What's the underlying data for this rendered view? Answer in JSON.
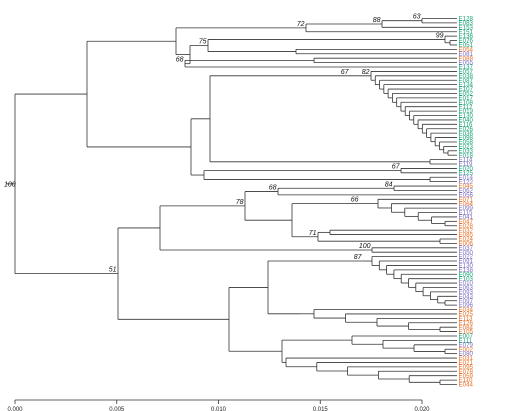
{
  "figure": {
    "colors": {
      "green": "#1aa37a",
      "orange": "#e8702a",
      "purple": "#7a6fc0",
      "branch": "#333333"
    },
    "tips": [
      {
        "label": "E128",
        "color": "green"
      },
      {
        "label": "E083",
        "color": "green"
      },
      {
        "label": "E153",
        "color": "green"
      },
      {
        "label": "E151",
        "color": "green"
      },
      {
        "label": "E136",
        "color": "green"
      },
      {
        "label": "E076",
        "color": "green"
      },
      {
        "label": "E051",
        "color": "green"
      },
      {
        "label": "E054",
        "color": "orange"
      },
      {
        "label": "E081",
        "color": "purple"
      },
      {
        "label": "E088",
        "color": "orange"
      },
      {
        "label": "E055",
        "color": "purple"
      },
      {
        "label": "E137",
        "color": "green"
      },
      {
        "label": "E057",
        "color": "green"
      },
      {
        "label": "E038",
        "color": "green"
      },
      {
        "label": "E087",
        "color": "green"
      },
      {
        "label": "E134",
        "color": "green"
      },
      {
        "label": "E107",
        "color": "green"
      },
      {
        "label": "E052",
        "color": "green"
      },
      {
        "label": "E017",
        "color": "green"
      },
      {
        "label": "E108",
        "color": "green"
      },
      {
        "label": "E112",
        "color": "green"
      },
      {
        "label": "E019",
        "color": "green"
      },
      {
        "label": "E130",
        "color": "green"
      },
      {
        "label": "E040",
        "color": "green"
      },
      {
        "label": "E116",
        "color": "green"
      },
      {
        "label": "E026",
        "color": "green"
      },
      {
        "label": "E036",
        "color": "green"
      },
      {
        "label": "E098",
        "color": "green"
      },
      {
        "label": "E058",
        "color": "green"
      },
      {
        "label": "E023",
        "color": "green"
      },
      {
        "label": "E033",
        "color": "green"
      },
      {
        "label": "E018",
        "color": "green"
      },
      {
        "label": "E114",
        "color": "purple"
      },
      {
        "label": "E119",
        "color": "purple"
      },
      {
        "label": "E020",
        "color": "green"
      },
      {
        "label": "E125",
        "color": "green"
      },
      {
        "label": "E014",
        "color": "purple"
      },
      {
        "label": "E122",
        "color": "purple"
      },
      {
        "label": "E045",
        "color": "orange"
      },
      {
        "label": "E062",
        "color": "purple"
      },
      {
        "label": "E056",
        "color": "purple"
      },
      {
        "label": "E071",
        "color": "orange"
      },
      {
        "label": "E064",
        "color": "orange"
      },
      {
        "label": "E099",
        "color": "purple"
      },
      {
        "label": "E115",
        "color": "purple"
      },
      {
        "label": "E041",
        "color": "purple"
      },
      {
        "label": "E047",
        "color": "orange"
      },
      {
        "label": "E028",
        "color": "orange"
      },
      {
        "label": "E032",
        "color": "orange"
      },
      {
        "label": "E085",
        "color": "orange"
      },
      {
        "label": "E024",
        "color": "orange"
      },
      {
        "label": "E006",
        "color": "orange"
      },
      {
        "label": "E037",
        "color": "purple"
      },
      {
        "label": "E050",
        "color": "purple"
      },
      {
        "label": "E022",
        "color": "purple"
      },
      {
        "label": "E091",
        "color": "purple"
      },
      {
        "label": "E130",
        "color": "purple"
      },
      {
        "label": "E138",
        "color": "purple"
      },
      {
        "label": "E090",
        "color": "green"
      },
      {
        "label": "E103",
        "color": "green"
      },
      {
        "label": "E010",
        "color": "purple"
      },
      {
        "label": "E063",
        "color": "purple"
      },
      {
        "label": "E093",
        "color": "purple"
      },
      {
        "label": "E043",
        "color": "purple"
      },
      {
        "label": "E097",
        "color": "purple"
      },
      {
        "label": "E096",
        "color": "purple"
      },
      {
        "label": "E034",
        "color": "orange"
      },
      {
        "label": "E025",
        "color": "orange"
      },
      {
        "label": "E113",
        "color": "orange"
      },
      {
        "label": "E126",
        "color": "orange"
      },
      {
        "label": "E084",
        "color": "orange"
      },
      {
        "label": "E105",
        "color": "orange"
      },
      {
        "label": "E007",
        "color": "green"
      },
      {
        "label": "E111",
        "color": "green"
      },
      {
        "label": "E079",
        "color": "purple"
      },
      {
        "label": "E002",
        "color": "orange"
      },
      {
        "label": "E080",
        "color": "purple"
      },
      {
        "label": "E031",
        "color": "orange"
      },
      {
        "label": "E021",
        "color": "orange"
      },
      {
        "label": "E095",
        "color": "orange"
      },
      {
        "label": "E078",
        "color": "orange"
      },
      {
        "label": "E059",
        "color": "orange"
      },
      {
        "label": "E110",
        "color": "orange"
      },
      {
        "label": "E044",
        "color": "orange"
      }
    ],
    "bootstrap_values": [
      "72",
      "88",
      "63",
      "75",
      "99",
      "68",
      "67",
      "82",
      "67",
      "100",
      "68",
      "84",
      "78",
      "51",
      "66",
      "71",
      "100",
      "87"
    ],
    "axis": {
      "ticks": [
        "0.000",
        "0.005",
        "0.010",
        "0.015",
        "0.020"
      ]
    }
  }
}
